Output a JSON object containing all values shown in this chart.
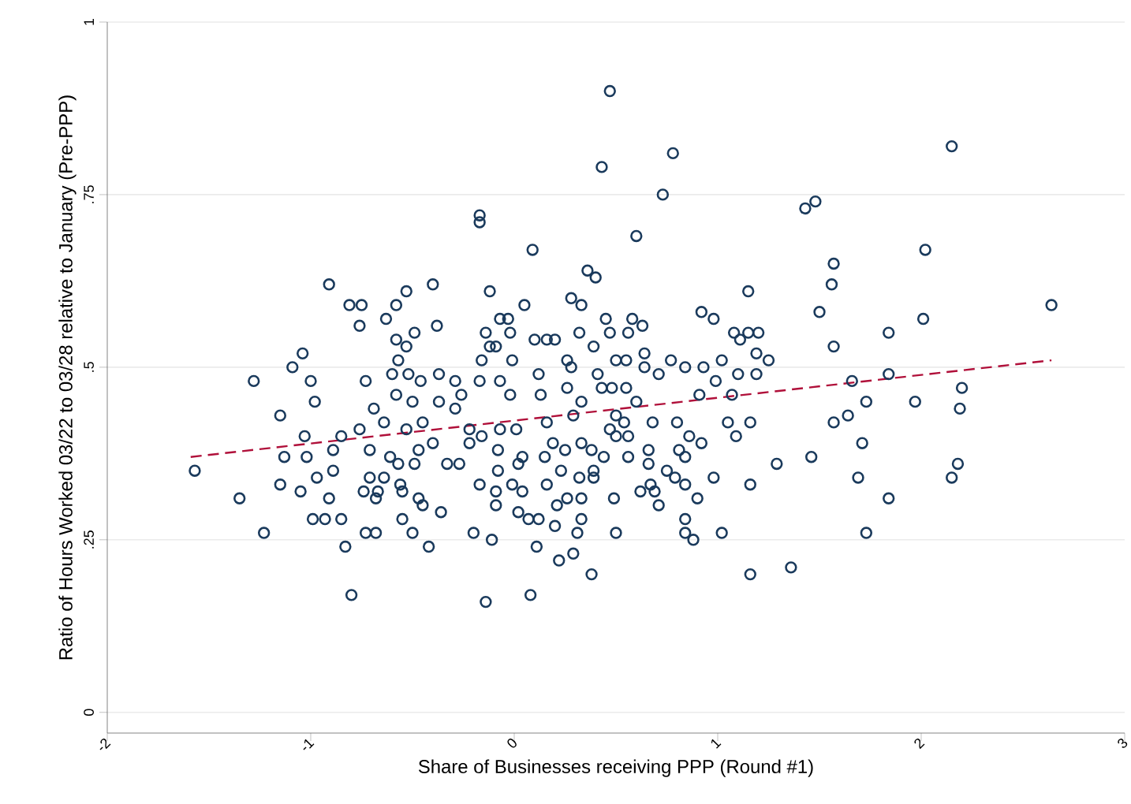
{
  "chart_data": {
    "type": "scatter",
    "xlabel": "Share of Businesses receiving PPP (Round #1)",
    "ylabel": "Ratio of Hours Worked 03/22 to 03/28 relative to January (Pre-PPP)",
    "xlim": [
      -2,
      3
    ],
    "ylim": [
      -0.03,
      1
    ],
    "xticks": [
      -2,
      -1,
      0,
      1,
      2,
      3
    ],
    "yticks": [
      0,
      {
        "value": 0.25,
        "label": ".25"
      },
      {
        "value": 0.5,
        "label": ".5"
      },
      {
        "value": 0.75,
        "label": ".75"
      },
      1
    ],
    "grid": "y",
    "series": [
      {
        "color": "#1a3a5c",
        "marker": "circle",
        "x": [
          -1.57,
          -1.35,
          -1.23,
          -1.28,
          -1.15,
          -1.13,
          -1.15,
          -1.04,
          -1.09,
          -1.0,
          -0.98,
          -1.03,
          -1.02,
          -1.05,
          -0.97,
          -0.91,
          -0.99,
          -0.93,
          -0.85,
          -0.83,
          -0.8,
          -0.91,
          -0.81,
          -0.75,
          -0.76,
          -0.63,
          -0.58,
          -0.53,
          -0.4,
          -0.38,
          -0.49,
          -0.58,
          -0.53,
          -0.57,
          -0.6,
          -0.52,
          -0.73,
          -0.69,
          -0.58,
          -0.5,
          -0.46,
          -0.37,
          -0.37,
          -0.29,
          -0.26,
          -0.29,
          -0.76,
          -0.85,
          -0.89,
          -0.71,
          -0.61,
          -0.57,
          -0.49,
          -0.47,
          -0.64,
          -0.53,
          -0.45,
          -0.4,
          -0.33,
          -0.27,
          -0.89,
          -0.71,
          -0.64,
          -0.74,
          -0.67,
          -0.68,
          -0.56,
          -0.55,
          -0.47,
          -0.45,
          -0.36,
          -0.55,
          -0.5,
          -0.73,
          -0.68,
          -0.42,
          -0.22,
          -0.17,
          0.09,
          0.6,
          -0.12,
          0.05,
          0.36,
          0.4,
          0.28,
          0.33,
          -0.07,
          -0.03,
          -0.02,
          -0.14,
          -0.12,
          -0.09,
          0.1,
          0.16,
          0.2,
          0.32,
          0.39,
          0.45,
          0.47,
          0.56,
          0.58,
          0.63,
          0.64,
          0.92,
          0.98,
          1.15,
          1.08,
          1.11,
          1.15,
          1.2,
          1.19,
          -0.16,
          -0.01,
          0.12,
          0.26,
          0.28,
          0.41,
          0.5,
          0.55,
          0.64,
          0.71,
          0.77,
          0.84,
          0.93,
          1.02,
          1.1,
          1.19,
          1.25,
          -0.17,
          -0.07,
          -0.02,
          0.13,
          0.26,
          0.33,
          0.43,
          0.48,
          0.55,
          0.6,
          0.91,
          0.99,
          1.07,
          -0.22,
          -0.16,
          -0.07,
          0.01,
          0.16,
          0.29,
          0.5,
          0.54,
          0.68,
          0.8,
          1.05,
          1.16,
          1.09,
          -0.08,
          0.04,
          0.19,
          0.25,
          0.33,
          0.38,
          0.47,
          0.5,
          0.56,
          0.56,
          0.66,
          0.66,
          0.81,
          0.86,
          0.92,
          0.84,
          -0.08,
          0.02,
          0.15,
          0.23,
          0.39,
          0.44,
          0.75,
          -0.17,
          -0.09,
          -0.01,
          0.04,
          0.16,
          0.32,
          0.39,
          0.62,
          0.69,
          0.67,
          0.79,
          0.84,
          0.9,
          0.98,
          1.16,
          -0.09,
          0.02,
          0.07,
          0.12,
          0.21,
          0.26,
          0.33,
          0.49,
          0.71,
          0.84,
          -0.2,
          -0.11,
          0.11,
          0.2,
          0.31,
          0.33,
          0.5,
          0.84,
          0.88,
          1.02,
          0.22,
          0.29,
          0.38,
          0.08,
          -0.14,
          1.16,
          2.15,
          1.43,
          1.48,
          2.02,
          1.57,
          1.56,
          1.5,
          2.01,
          1.84,
          1.57,
          2.64,
          1.66,
          1.84,
          2.2,
          1.73,
          1.97,
          2.19,
          1.57,
          1.64,
          1.71,
          1.46,
          1.29,
          1.69,
          2.18,
          2.15,
          1.84,
          1.73,
          1.36,
          0.47,
          0.78,
          0.43,
          0.73,
          -0.17
        ],
        "values": [
          0.35,
          0.31,
          0.26,
          0.48,
          0.43,
          0.37,
          0.33,
          0.52,
          0.5,
          0.48,
          0.45,
          0.4,
          0.37,
          0.32,
          0.34,
          0.31,
          0.28,
          0.28,
          0.28,
          0.24,
          0.17,
          0.62,
          0.59,
          0.59,
          0.56,
          0.57,
          0.59,
          0.61,
          0.62,
          0.56,
          0.55,
          0.54,
          0.53,
          0.51,
          0.49,
          0.49,
          0.48,
          0.44,
          0.46,
          0.45,
          0.48,
          0.49,
          0.45,
          0.48,
          0.46,
          0.44,
          0.41,
          0.4,
          0.38,
          0.38,
          0.37,
          0.36,
          0.36,
          0.38,
          0.42,
          0.41,
          0.42,
          0.39,
          0.36,
          0.36,
          0.35,
          0.34,
          0.34,
          0.32,
          0.32,
          0.31,
          0.33,
          0.32,
          0.31,
          0.3,
          0.29,
          0.28,
          0.26,
          0.26,
          0.26,
          0.24,
          0.39,
          0.71,
          0.67,
          0.69,
          0.61,
          0.59,
          0.64,
          0.63,
          0.6,
          0.59,
          0.57,
          0.57,
          0.55,
          0.55,
          0.53,
          0.53,
          0.54,
          0.54,
          0.54,
          0.55,
          0.53,
          0.57,
          0.55,
          0.55,
          0.57,
          0.56,
          0.52,
          0.58,
          0.57,
          0.61,
          0.55,
          0.54,
          0.55,
          0.55,
          0.52,
          0.51,
          0.51,
          0.49,
          0.51,
          0.5,
          0.49,
          0.51,
          0.51,
          0.5,
          0.49,
          0.51,
          0.5,
          0.5,
          0.51,
          0.49,
          0.49,
          0.51,
          0.48,
          0.48,
          0.46,
          0.46,
          0.47,
          0.45,
          0.47,
          0.47,
          0.47,
          0.45,
          0.46,
          0.48,
          0.46,
          0.41,
          0.4,
          0.41,
          0.41,
          0.42,
          0.43,
          0.43,
          0.42,
          0.42,
          0.42,
          0.42,
          0.42,
          0.4,
          0.38,
          0.37,
          0.39,
          0.38,
          0.39,
          0.38,
          0.41,
          0.4,
          0.4,
          0.37,
          0.38,
          0.36,
          0.38,
          0.4,
          0.39,
          0.37,
          0.35,
          0.36,
          0.37,
          0.35,
          0.35,
          0.37,
          0.35,
          0.33,
          0.32,
          0.33,
          0.32,
          0.33,
          0.34,
          0.34,
          0.32,
          0.32,
          0.33,
          0.34,
          0.33,
          0.31,
          0.34,
          0.33,
          0.3,
          0.29,
          0.28,
          0.28,
          0.3,
          0.31,
          0.31,
          0.31,
          0.3,
          0.28,
          0.26,
          0.25,
          0.24,
          0.27,
          0.26,
          0.28,
          0.26,
          0.26,
          0.25,
          0.26,
          0.22,
          0.23,
          0.2,
          0.17,
          0.16,
          0.2,
          0.82,
          0.73,
          0.74,
          0.67,
          0.65,
          0.62,
          0.58,
          0.57,
          0.55,
          0.53,
          0.59,
          0.48,
          0.49,
          0.47,
          0.45,
          0.45,
          0.44,
          0.42,
          0.43,
          0.39,
          0.37,
          0.36,
          0.34,
          0.36,
          0.34,
          0.31,
          0.26,
          0.21,
          0.9,
          0.81,
          0.79,
          0.75,
          0.72
        ]
      },
      {
        "type": "line",
        "color": "#b0103a",
        "line_style": "dashed",
        "marker": "none",
        "x": [
          -1.59,
          2.64
        ],
        "values": [
          0.37,
          0.51
        ]
      }
    ]
  }
}
